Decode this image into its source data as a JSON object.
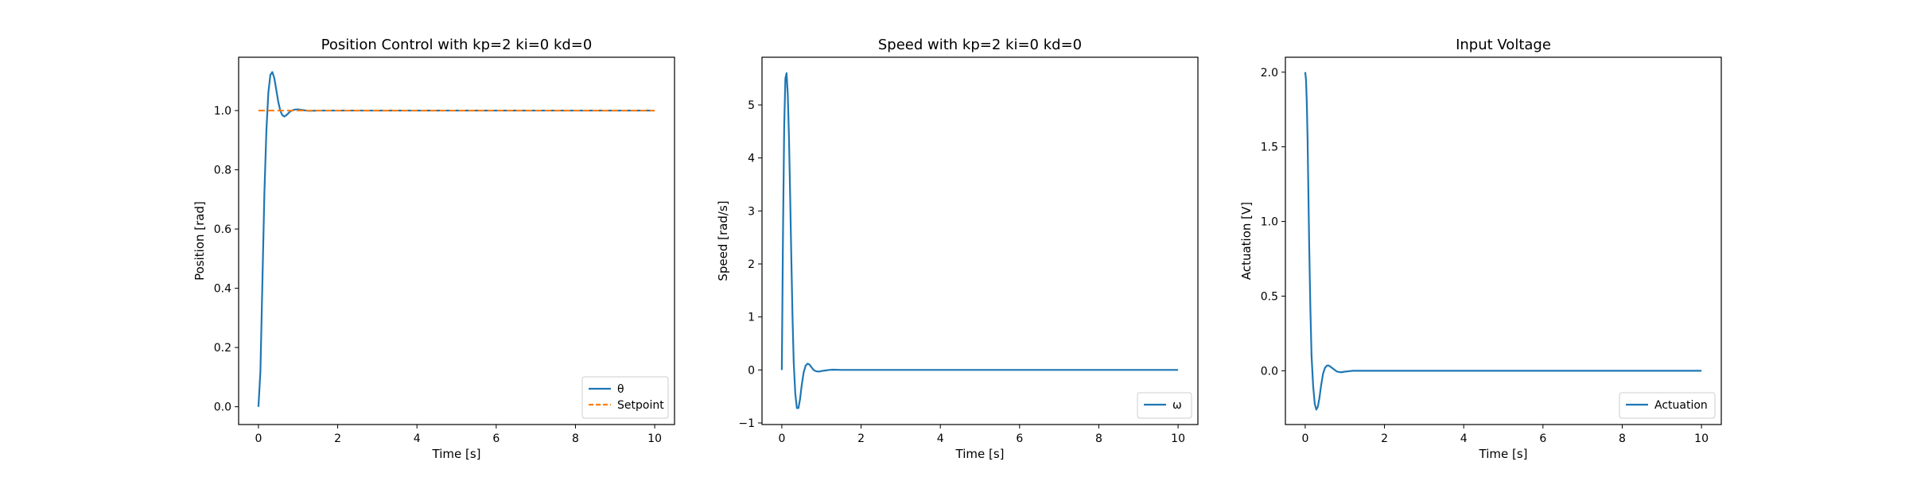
{
  "chart_data": [
    {
      "type": "line",
      "title": "Position Control with kp=2 ki=0 kd=0",
      "xlabel": "Time [s]",
      "ylabel": "Position [rad]",
      "xlim": [
        -0.5,
        10.5
      ],
      "ylim": [
        -0.06,
        1.18
      ],
      "xticks": [
        0,
        2,
        4,
        6,
        8,
        10
      ],
      "yticks": [
        0.0,
        0.2,
        0.4,
        0.6,
        0.8,
        1.0
      ],
      "ytick_labels": [
        "0.0",
        "0.2",
        "0.4",
        "0.6",
        "0.8",
        "1.0"
      ],
      "grid": false,
      "legend_position": "lower-right",
      "series": [
        {
          "name": "θ",
          "color": "#1f77b4",
          "style": "solid",
          "x": [
            0,
            0.05,
            0.1,
            0.15,
            0.2,
            0.25,
            0.3,
            0.35,
            0.4,
            0.45,
            0.5,
            0.55,
            0.6,
            0.65,
            0.7,
            0.75,
            0.8,
            0.9,
            1.0,
            1.1,
            1.2,
            1.3,
            1.5,
            2,
            3,
            4,
            5,
            6,
            7,
            8,
            9,
            10
          ],
          "y": [
            0.0,
            0.12,
            0.42,
            0.72,
            0.93,
            1.06,
            1.12,
            1.13,
            1.11,
            1.07,
            1.03,
            1.0,
            0.985,
            0.98,
            0.984,
            0.99,
            0.997,
            1.003,
            1.004,
            1.002,
            1.0,
            0.999,
            1.0,
            1.0,
            1.0,
            1.0,
            1.0,
            1.0,
            1.0,
            1.0,
            1.0,
            1.0
          ]
        },
        {
          "name": "Setpoint",
          "color": "#ff7f0e",
          "style": "dashed",
          "x": [
            0,
            10
          ],
          "y": [
            1.0,
            1.0
          ]
        }
      ]
    },
    {
      "type": "line",
      "title": "Speed with kp=2 ki=0 kd=0",
      "xlabel": "Time [s]",
      "ylabel": "Speed [rad/s]",
      "xlim": [
        -0.5,
        10.5
      ],
      "ylim": [
        -1.03,
        5.9
      ],
      "xticks": [
        0,
        2,
        4,
        6,
        8,
        10
      ],
      "yticks": [
        -1,
        0,
        1,
        2,
        3,
        4,
        5
      ],
      "ytick_labels": [
        "−1",
        "0",
        "1",
        "2",
        "3",
        "4",
        "5"
      ],
      "grid": false,
      "legend_position": "lower-right",
      "series": [
        {
          "name": "ω",
          "color": "#1f77b4",
          "style": "solid",
          "x": [
            0,
            0.03,
            0.06,
            0.09,
            0.12,
            0.15,
            0.18,
            0.21,
            0.24,
            0.27,
            0.3,
            0.34,
            0.38,
            0.42,
            0.46,
            0.5,
            0.55,
            0.6,
            0.65,
            0.7,
            0.75,
            0.8,
            0.85,
            0.9,
            0.95,
            1.0,
            1.1,
            1.2,
            1.3,
            1.5,
            2,
            3,
            4,
            5,
            6,
            7,
            8,
            9,
            10
          ],
          "y": [
            0.0,
            2.6,
            4.6,
            5.5,
            5.6,
            5.2,
            4.4,
            3.3,
            2.1,
            1.0,
            0.15,
            -0.45,
            -0.72,
            -0.72,
            -0.55,
            -0.3,
            -0.05,
            0.08,
            0.12,
            0.1,
            0.05,
            0.0,
            -0.02,
            -0.03,
            -0.03,
            -0.02,
            -0.01,
            0.0,
            0.005,
            0.0,
            0.0,
            0.0,
            0.0,
            0.0,
            0.0,
            0.0,
            0.0,
            0.0,
            0.0
          ]
        }
      ]
    },
    {
      "type": "line",
      "title": "Input Voltage",
      "xlabel": "Time [s]",
      "ylabel": "Actuation [V]",
      "xlim": [
        -0.5,
        10.5
      ],
      "ylim": [
        -0.36,
        2.1
      ],
      "xticks": [
        0,
        2,
        4,
        6,
        8,
        10
      ],
      "yticks": [
        0.0,
        0.5,
        1.0,
        1.5,
        2.0
      ],
      "ytick_labels": [
        "0.0",
        "0.5",
        "1.0",
        "1.5",
        "2.0"
      ],
      "grid": false,
      "legend_position": "lower-right",
      "series": [
        {
          "name": "Actuation",
          "color": "#1f77b4",
          "style": "solid",
          "x": [
            0,
            0.02,
            0.04,
            0.06,
            0.08,
            0.1,
            0.13,
            0.16,
            0.2,
            0.24,
            0.28,
            0.32,
            0.36,
            0.4,
            0.45,
            0.5,
            0.55,
            0.6,
            0.65,
            0.7,
            0.75,
            0.8,
            0.9,
            1.0,
            1.1,
            1.2,
            1.4,
            1.6,
            2,
            3,
            4,
            5,
            6,
            7,
            8,
            9,
            10
          ],
          "y": [
            2.0,
            1.95,
            1.8,
            1.55,
            1.2,
            0.85,
            0.42,
            0.1,
            -0.1,
            -0.22,
            -0.26,
            -0.24,
            -0.18,
            -0.1,
            -0.02,
            0.02,
            0.035,
            0.035,
            0.025,
            0.015,
            0.005,
            -0.005,
            -0.01,
            -0.006,
            -0.003,
            0.0,
            0.0,
            0.0,
            0.0,
            0.0,
            0.0,
            0.0,
            0.0,
            0.0,
            0.0,
            0.0,
            0.0
          ]
        }
      ]
    }
  ]
}
